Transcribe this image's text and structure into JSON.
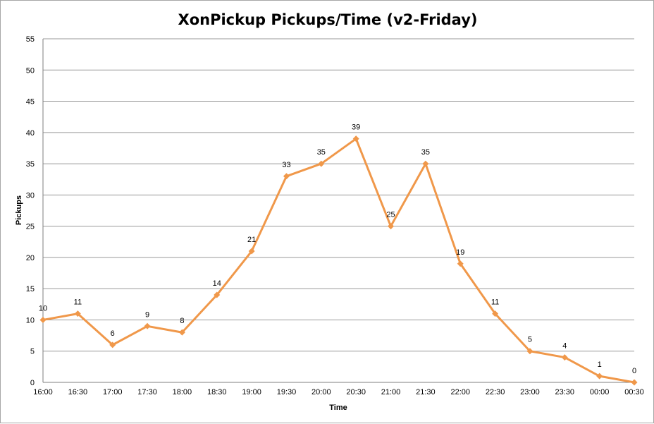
{
  "chart_data": {
    "type": "line",
    "title": "XonPickup Pickups/Time (v2-Friday)",
    "xlabel": "Time",
    "ylabel": "Pickups",
    "categories": [
      "16:00",
      "16:30",
      "17:00",
      "17:30",
      "18:00",
      "18:30",
      "19:00",
      "19:30",
      "20:00",
      "20:30",
      "21:00",
      "21:30",
      "22:00",
      "22:30",
      "23:00",
      "23:30",
      "00:00",
      "00:30"
    ],
    "series": [
      {
        "values": [
          10,
          11,
          6,
          9,
          8,
          14,
          21,
          33,
          35,
          39,
          25,
          35,
          19,
          11,
          5,
          4,
          1,
          0
        ],
        "color": "#f0984a"
      }
    ],
    "ylim": [
      0,
      55
    ],
    "yticks": [
      0,
      5,
      10,
      15,
      20,
      25,
      30,
      35,
      40,
      45,
      50,
      55
    ],
    "grid": true,
    "legend": "none",
    "marker": "diamond",
    "data_labels": true
  }
}
